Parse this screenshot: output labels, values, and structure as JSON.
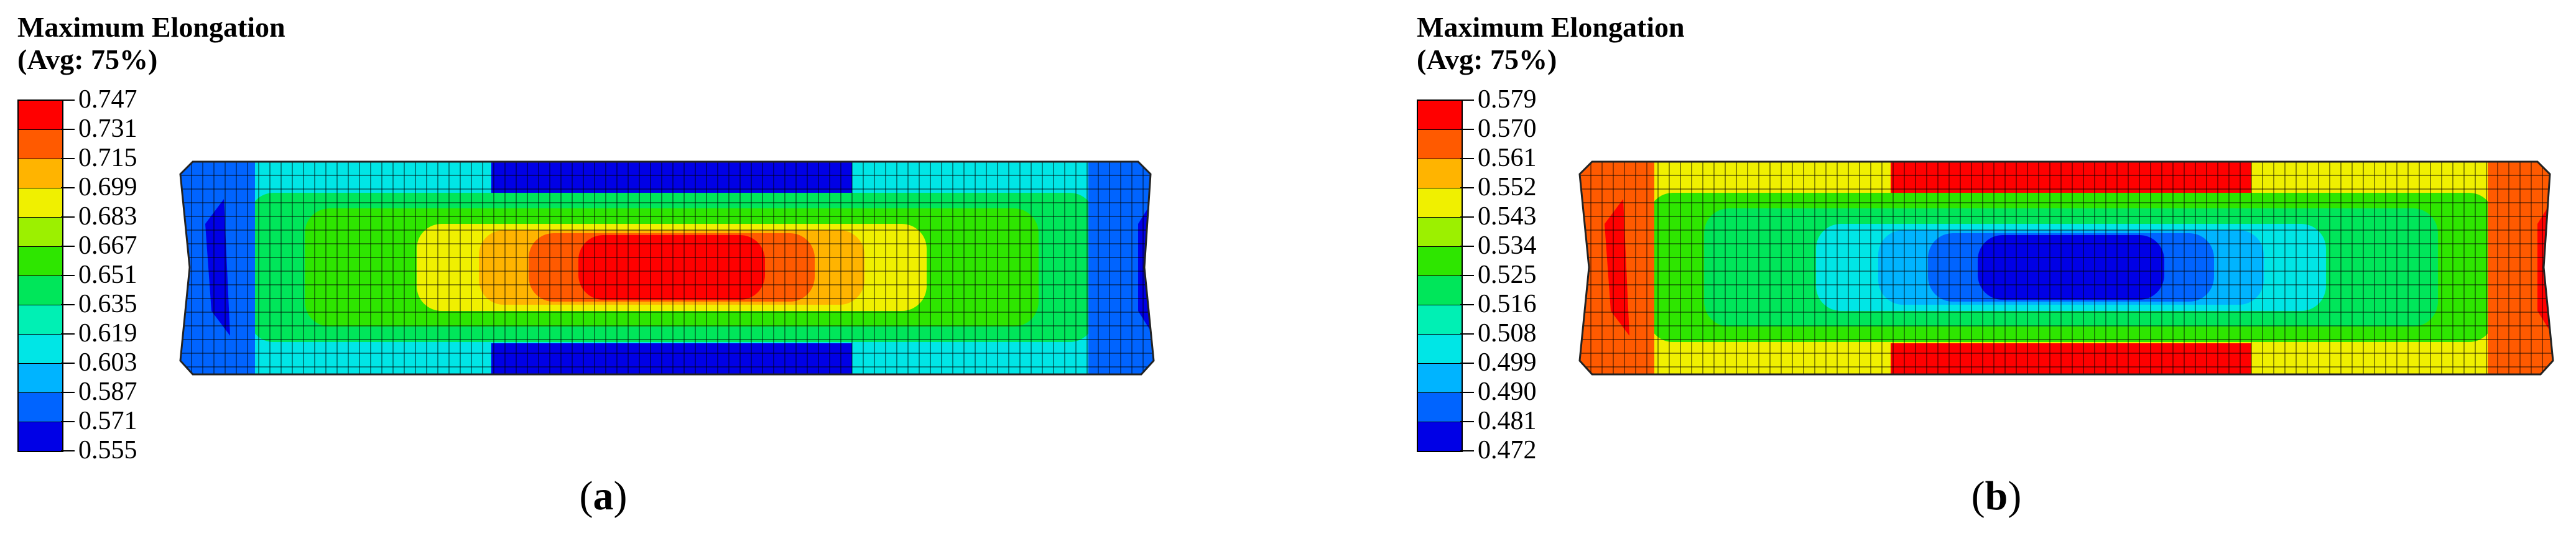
{
  "panels": [
    {
      "id": "a",
      "legend_title_line1": "Maximum Elongation",
      "legend_title_line2": "(Avg: 75%)",
      "legend_values": [
        "0.747",
        "0.731",
        "0.715",
        "0.699",
        "0.683",
        "0.667",
        "0.651",
        "0.635",
        "0.619",
        "0.603",
        "0.587",
        "0.571",
        "0.555"
      ],
      "legend_colors": [
        "#ff0000",
        "#ff5a00",
        "#ffb400",
        "#f0f000",
        "#9cf000",
        "#2ee600",
        "#00e65a",
        "#00f0b4",
        "#00e6e6",
        "#00b4ff",
        "#0064ff",
        "#0000e6"
      ],
      "caption_open": "(",
      "caption_letter": "a",
      "caption_close": ")",
      "center_color": "max",
      "ends_color": "min"
    },
    {
      "id": "b",
      "legend_title_line1": "Maximum Elongation",
      "legend_title_line2": "(Avg: 75%)",
      "legend_values": [
        "0.579",
        "0.570",
        "0.561",
        "0.552",
        "0.543",
        "0.534",
        "0.525",
        "0.516",
        "0.508",
        "0.499",
        "0.490",
        "0.481",
        "0.472"
      ],
      "legend_colors": [
        "#ff0000",
        "#ff5a00",
        "#ffb400",
        "#f0f000",
        "#9cf000",
        "#2ee600",
        "#00e65a",
        "#00f0b4",
        "#00e6e6",
        "#00b4ff",
        "#0064ff",
        "#0000e6"
      ],
      "caption_open": "(",
      "caption_letter": "b",
      "caption_close": ")",
      "center_color": "min",
      "ends_color": "max"
    }
  ]
}
